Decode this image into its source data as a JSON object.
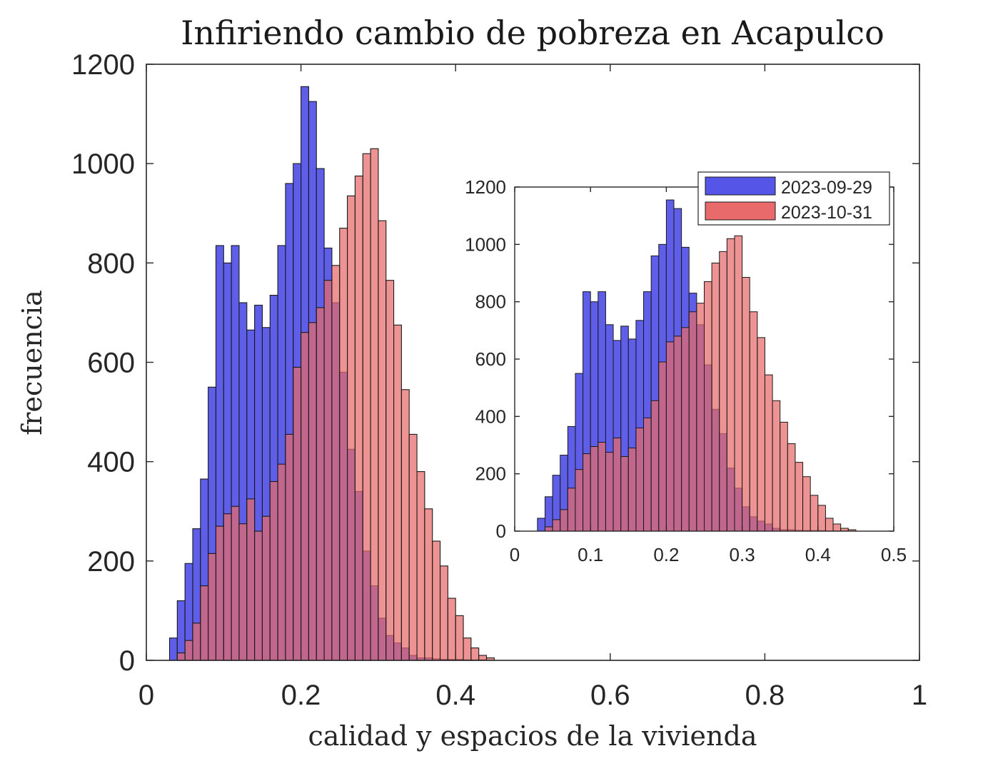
{
  "chart_data": [
    {
      "id": "main",
      "type": "bar",
      "title": "Infiriendo cambio de pobreza en Acapulco",
      "xlabel": "calidad y espacios de la vivienda",
      "ylabel": "frecuencia",
      "xlim": [
        0,
        1
      ],
      "ylim": [
        0,
        1200
      ],
      "xticks": [
        "0",
        "0.2",
        "0.4",
        "0.6",
        "0.8",
        "1"
      ],
      "yticks": [
        "0",
        "200",
        "400",
        "600",
        "800",
        "1000",
        "1200"
      ],
      "bin_start": 0.03,
      "bin_width": 0.01,
      "series": [
        {
          "name": "2023-09-29",
          "color": "#5555e8",
          "values": [
            45,
            120,
            195,
            265,
            365,
            550,
            835,
            800,
            835,
            720,
            665,
            715,
            670,
            735,
            835,
            960,
            1000,
            1155,
            1125,
            990,
            830,
            720,
            580,
            425,
            340,
            220,
            150,
            85,
            50,
            35,
            25,
            10,
            5,
            5,
            3,
            2,
            2,
            2,
            1,
            1,
            1
          ]
        },
        {
          "name": "2023-10-31",
          "color": "#e86a6a",
          "values": [
            0,
            15,
            40,
            75,
            150,
            215,
            270,
            295,
            310,
            275,
            325,
            260,
            290,
            360,
            395,
            455,
            590,
            660,
            680,
            710,
            765,
            795,
            870,
            935,
            975,
            1020,
            1030,
            885,
            765,
            675,
            545,
            455,
            380,
            305,
            240,
            190,
            125,
            90,
            45,
            25,
            10,
            5
          ]
        }
      ]
    },
    {
      "id": "inset",
      "type": "bar",
      "xlim": [
        0,
        0.5
      ],
      "ylim": [
        0,
        1200
      ],
      "xticks": [
        "0",
        "0.1",
        "0.2",
        "0.3",
        "0.4",
        "0.5"
      ],
      "yticks": [
        "0",
        "200",
        "400",
        "600",
        "800",
        "1000",
        "1200"
      ],
      "legend": {
        "placement": "top-right",
        "entries": [
          "2023-09-29",
          "2023-10-31"
        ]
      },
      "note": "zoomed view of the same two series over 0-0.5"
    }
  ],
  "colors": {
    "blue": "#5555e8",
    "red": "#e86a6a",
    "overlap": "#a1315b",
    "edge": "#1a1a1a"
  }
}
